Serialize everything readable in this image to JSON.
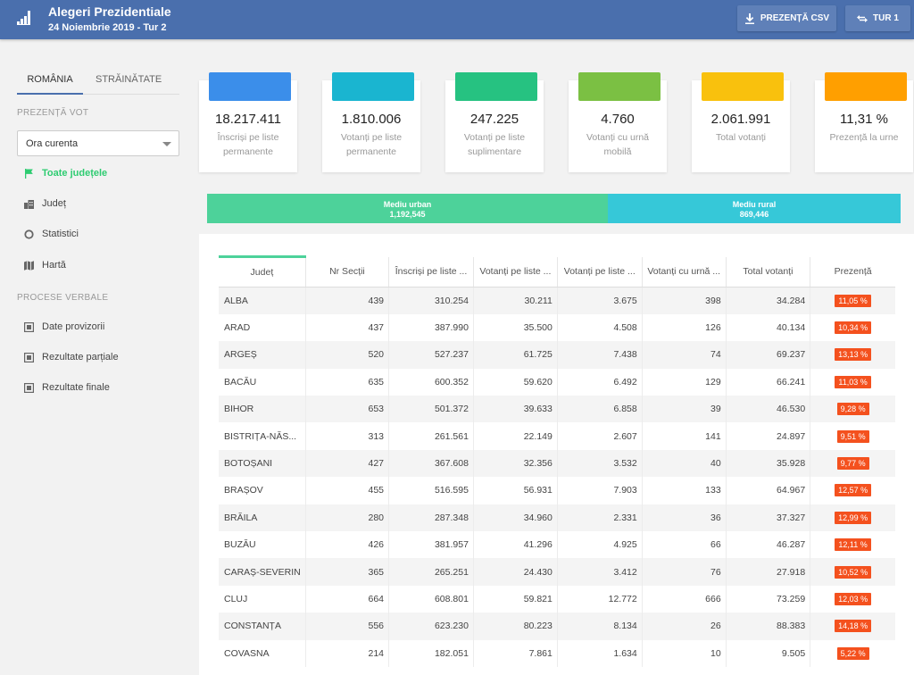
{
  "header": {
    "title": "Alegeri Prezidentiale",
    "subtitle": "24 Noiembrie 2019 - Tur 2",
    "csv_button": "PREZENȚĂ CSV",
    "tur_button": "TUR 1"
  },
  "sidebar": {
    "tabs": [
      "ROMÂNIA",
      "STRĂINĂTATE"
    ],
    "section_vote": "PREZENȚĂ VOT",
    "select_value": "Ora curenta",
    "nav_vote": [
      "Toate județele",
      "Județ",
      "Statistici",
      "Hartă"
    ],
    "section_pv": "PROCESE VERBALE",
    "nav_pv": [
      "Date provizorii",
      "Rezultate parțiale",
      "Rezultate finale"
    ]
  },
  "cards": [
    {
      "value": "18.217.411",
      "label": "Înscriși pe liste permanente",
      "color": "#3b8eea"
    },
    {
      "value": "1.810.006",
      "label": "Votanți pe liste permanente",
      "color": "#1ab5d0"
    },
    {
      "value": "247.225",
      "label": "Votanți pe liste suplimentare",
      "color": "#26c281"
    },
    {
      "value": "4.760",
      "label": "Votanți cu urnă mobilă",
      "color": "#7bc043"
    },
    {
      "value": "2.061.991",
      "label": "Total votanți",
      "color": "#f9c10d"
    },
    {
      "value": "11,31 %",
      "label": "Prezență la urne",
      "color": "#ff9f00"
    }
  ],
  "environment": {
    "urban_label": "Mediu urban",
    "urban_value": "1,192,545",
    "rural_label": "Mediu rural",
    "rural_value": "869,446"
  },
  "table": {
    "headers": [
      "Județ",
      "Nr Secții",
      "Înscriși pe liste ...",
      "Votanți pe liste ...",
      "Votanți pe liste ...",
      "Votanți cu urnă ...",
      "Total votanți",
      "Prezență"
    ],
    "rows": [
      [
        "ALBA",
        "439",
        "310.254",
        "30.211",
        "3.675",
        "398",
        "34.284",
        "11,05 %"
      ],
      [
        "ARAD",
        "437",
        "387.990",
        "35.500",
        "4.508",
        "126",
        "40.134",
        "10,34 %"
      ],
      [
        "ARGEȘ",
        "520",
        "527.237",
        "61.725",
        "7.438",
        "74",
        "69.237",
        "13,13 %"
      ],
      [
        "BACĂU",
        "635",
        "600.352",
        "59.620",
        "6.492",
        "129",
        "66.241",
        "11,03 %"
      ],
      [
        "BIHOR",
        "653",
        "501.372",
        "39.633",
        "6.858",
        "39",
        "46.530",
        "9,28 %"
      ],
      [
        "BISTRIȚA-NĂS...",
        "313",
        "261.561",
        "22.149",
        "2.607",
        "141",
        "24.897",
        "9,51 %"
      ],
      [
        "BOTOȘANI",
        "427",
        "367.608",
        "32.356",
        "3.532",
        "40",
        "35.928",
        "9,77 %"
      ],
      [
        "BRAȘOV",
        "455",
        "516.595",
        "56.931",
        "7.903",
        "133",
        "64.967",
        "12,57 %"
      ],
      [
        "BRĂILA",
        "280",
        "287.348",
        "34.960",
        "2.331",
        "36",
        "37.327",
        "12,99 %"
      ],
      [
        "BUZĂU",
        "426",
        "381.957",
        "41.296",
        "4.925",
        "66",
        "46.287",
        "12,11 %"
      ],
      [
        "CARAȘ-SEVERIN",
        "365",
        "265.251",
        "24.430",
        "3.412",
        "76",
        "27.918",
        "10,52 %"
      ],
      [
        "CLUJ",
        "664",
        "608.801",
        "59.821",
        "12.772",
        "666",
        "73.259",
        "12,03 %"
      ],
      [
        "CONSTANȚA",
        "556",
        "623.230",
        "80.223",
        "8.134",
        "26",
        "88.383",
        "14,18 %"
      ],
      [
        "COVASNA",
        "214",
        "182.051",
        "7.861",
        "1.634",
        "10",
        "9.505",
        "5,22 %"
      ]
    ]
  }
}
